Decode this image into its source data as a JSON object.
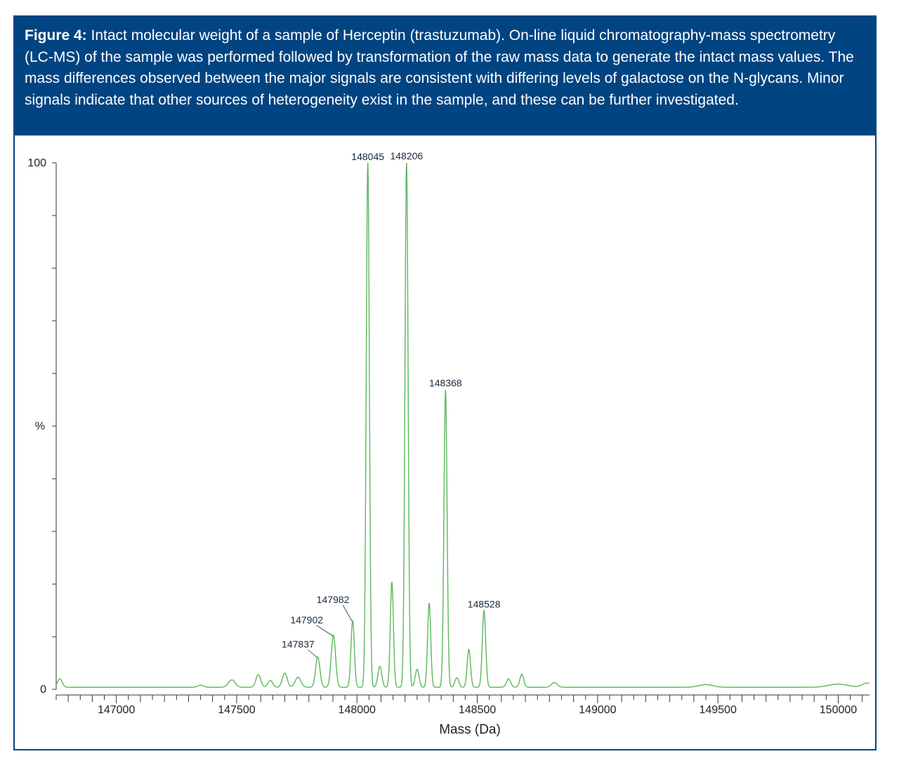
{
  "caption": {
    "lead": "Figure 4:",
    "text": " Intact molecular weight of a sample of Herceptin (trastuzumab). On-line liquid chromatography-mass spectrometry (LC-MS) of the sample was performed followed by transformation of the raw mass data to generate the intact mass values. The mass differences observed between the major signals are consistent with differing levels of galactose on the N-glycans. Minor signals indicate that other sources of heterogeneity exist in the sample, and these can be further investigated."
  },
  "colors": {
    "frame": "#004481",
    "trace": "#5cb85c",
    "axis": "#333333"
  },
  "chart_data": {
    "type": "line",
    "xlabel": "Mass (Da)",
    "ylabel": "%",
    "xlim": [
      146750,
      150130
    ],
    "ylim": [
      0,
      100
    ],
    "y_ticks": [
      0,
      100
    ],
    "x_ticks": [
      147000,
      147500,
      148000,
      148500,
      149000,
      149500,
      150000
    ],
    "x_minor_step": 50,
    "y_minor_step": 10,
    "baseline": 0.4,
    "peaks": [
      {
        "x": 146765,
        "y": 1.6,
        "w": 10
      },
      {
        "x": 147350,
        "y": 0.4,
        "w": 12
      },
      {
        "x": 147480,
        "y": 1.4,
        "w": 14
      },
      {
        "x": 147590,
        "y": 2.4,
        "w": 10
      },
      {
        "x": 147640,
        "y": 1.3,
        "w": 10
      },
      {
        "x": 147700,
        "y": 2.7,
        "w": 10
      },
      {
        "x": 147755,
        "y": 1.9,
        "w": 12
      },
      {
        "x": 147837,
        "y": 5.8,
        "w": 9,
        "label": "147837"
      },
      {
        "x": 147902,
        "y": 9.9,
        "w": 9,
        "label": "147902"
      },
      {
        "x": 147982,
        "y": 12.7,
        "w": 7,
        "label": "147982"
      },
      {
        "x": 148045,
        "y": 100,
        "w": 6.5,
        "label": "148045"
      },
      {
        "x": 148095,
        "y": 4.0,
        "w": 8
      },
      {
        "x": 148145,
        "y": 20.0,
        "w": 6.5
      },
      {
        "x": 148206,
        "y": 100,
        "w": 6.5,
        "label": "148206"
      },
      {
        "x": 148250,
        "y": 3.4,
        "w": 8
      },
      {
        "x": 148300,
        "y": 16.0,
        "w": 6.5
      },
      {
        "x": 148368,
        "y": 56.5,
        "w": 6.5,
        "label": "148368"
      },
      {
        "x": 148415,
        "y": 1.8,
        "w": 8
      },
      {
        "x": 148465,
        "y": 7.2,
        "w": 7
      },
      {
        "x": 148528,
        "y": 14.6,
        "w": 7,
        "label": "148528"
      },
      {
        "x": 148630,
        "y": 1.6,
        "w": 9
      },
      {
        "x": 148685,
        "y": 2.5,
        "w": 8
      },
      {
        "x": 148820,
        "y": 0.9,
        "w": 12
      },
      {
        "x": 149450,
        "y": 0.5,
        "w": 30
      },
      {
        "x": 150000,
        "y": 0.6,
        "w": 40
      },
      {
        "x": 150120,
        "y": 0.8,
        "w": 20
      }
    ]
  }
}
